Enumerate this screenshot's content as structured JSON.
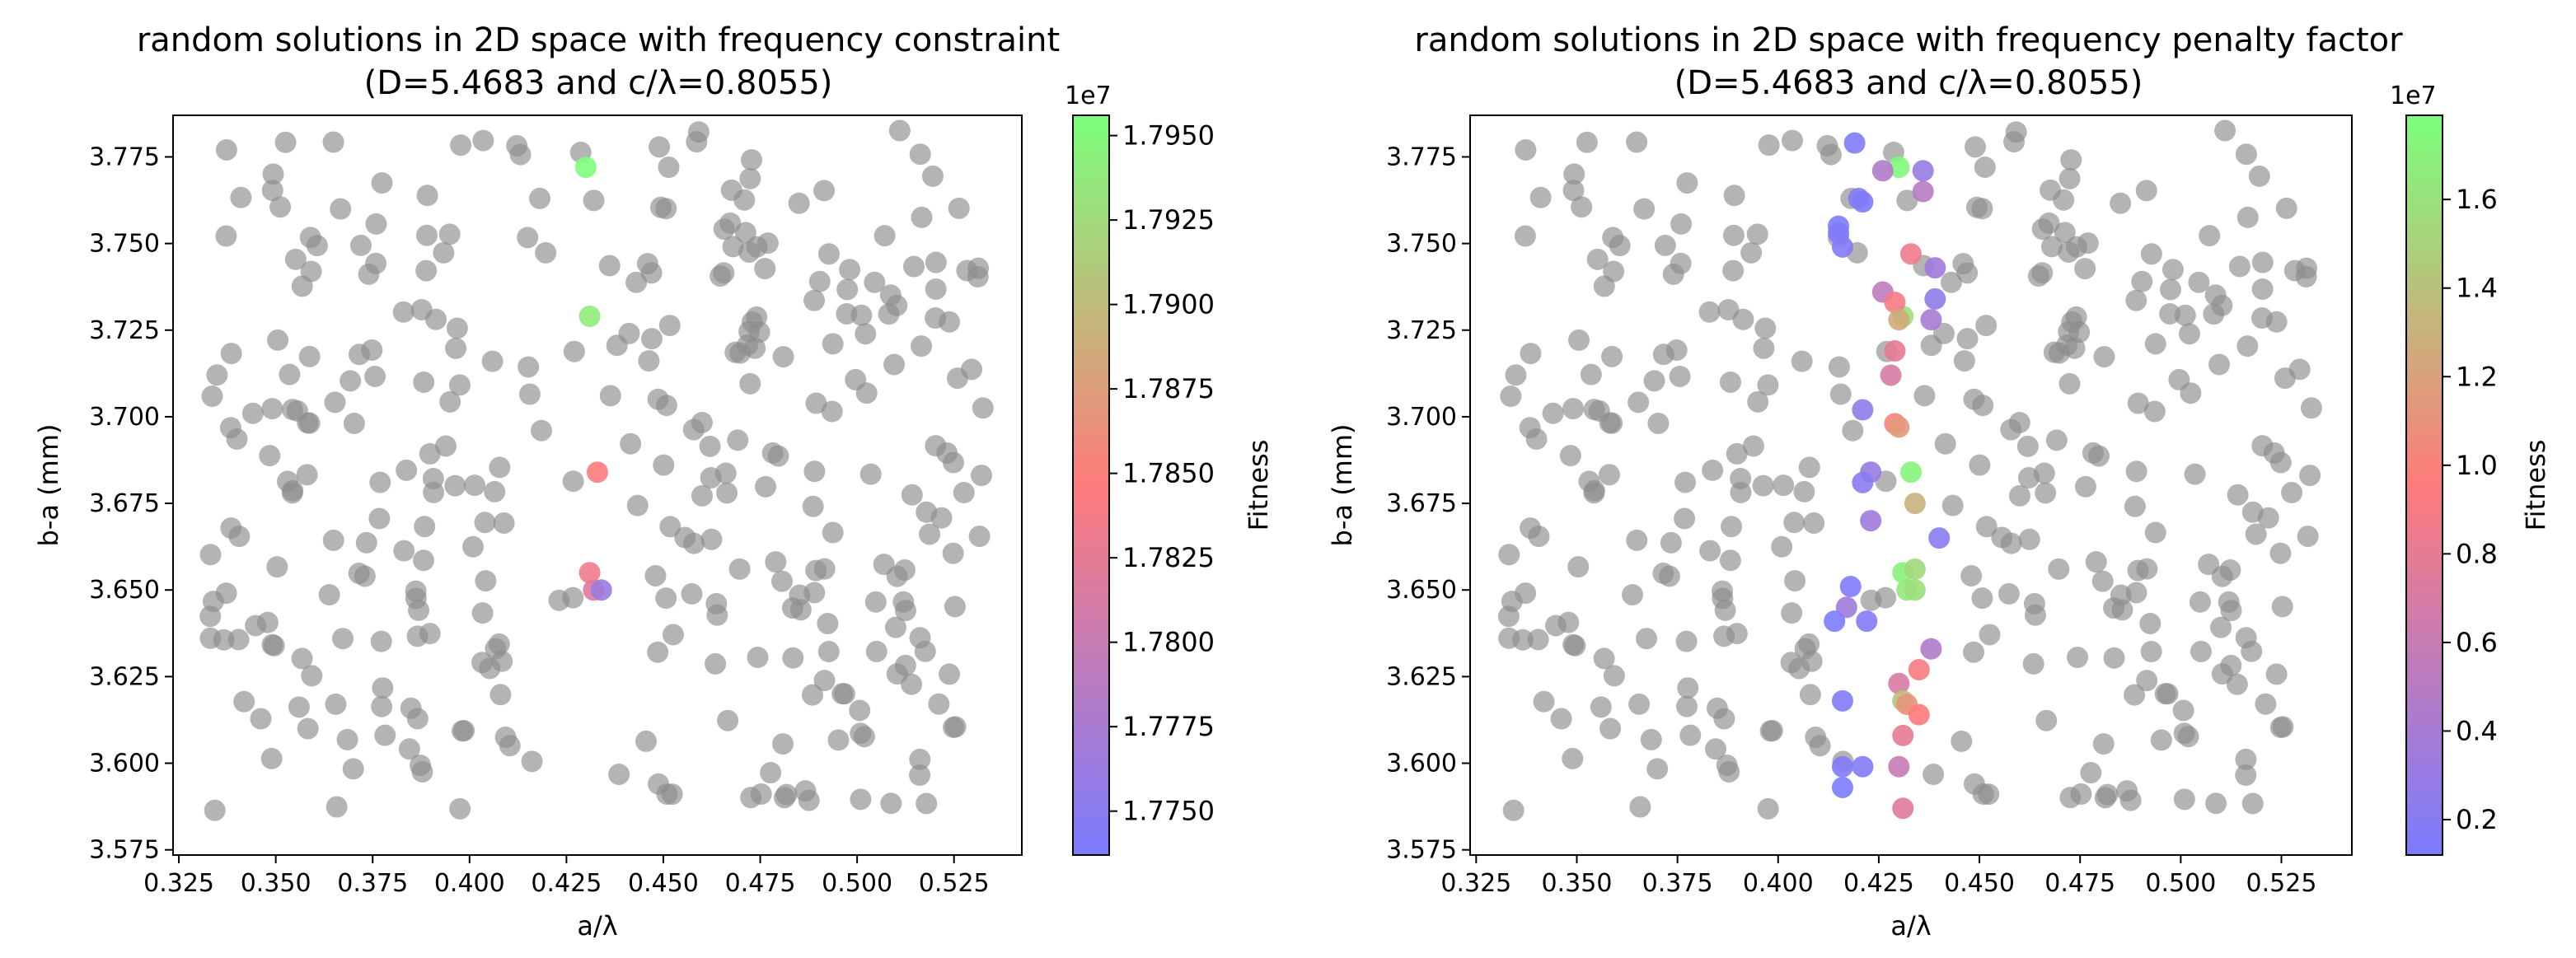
{
  "chart_data": [
    {
      "type": "scatter",
      "title_line1": "random solutions in 2D space with frequency constraint",
      "title_line2": "(D=5.4683 and c/λ=0.8055)",
      "xlabel": "a/λ",
      "ylabel": "b-a (mm)",
      "xlim": [
        0.3235,
        0.5425
      ],
      "ylim": [
        3.5735,
        3.787
      ],
      "xticks": [
        "0.325",
        "0.350",
        "0.375",
        "0.400",
        "0.425",
        "0.450",
        "0.475",
        "0.500",
        "0.525"
      ],
      "yticks": [
        "3.575",
        "3.600",
        "3.625",
        "3.650",
        "3.675",
        "3.700",
        "3.725",
        "3.750",
        "3.775"
      ],
      "colorbar": {
        "label": "Fitness",
        "offset_text": "1e7",
        "range": [
          1.7737,
          1.7956
        ],
        "ticks": [
          "1.7750",
          "1.7775",
          "1.7800",
          "1.7825",
          "1.7850",
          "1.7875",
          "1.7900",
          "1.7925",
          "1.7950"
        ],
        "colors": [
          "#7b7bff",
          "#ff7b7b",
          "#7bff7b"
        ]
      },
      "grey_points_color": "#8c8c8c",
      "colored_points": [
        {
          "x": 0.43,
          "y": 3.772,
          "fitness": 1.7955
        },
        {
          "x": 0.431,
          "y": 3.729,
          "fitness": 1.794
        },
        {
          "x": 0.433,
          "y": 3.684,
          "fitness": 1.7845
        },
        {
          "x": 0.431,
          "y": 3.655,
          "fitness": 1.7835
        },
        {
          "x": 0.432,
          "y": 3.65,
          "fitness": 1.782
        },
        {
          "x": 0.434,
          "y": 3.65,
          "fitness": 1.7765
        }
      ]
    },
    {
      "type": "scatter",
      "title_line1": "random solutions in 2D space with frequency penalty factor",
      "title_line2": "(D=5.4683 and c/λ=0.8055)",
      "xlabel": "a/λ",
      "ylabel": "b-a (mm)",
      "xlim": [
        0.3235,
        0.5425
      ],
      "ylim": [
        3.5735,
        3.787
      ],
      "xticks": [
        "0.325",
        "0.350",
        "0.375",
        "0.400",
        "0.425",
        "0.450",
        "0.475",
        "0.500",
        "0.525"
      ],
      "yticks": [
        "3.575",
        "3.600",
        "3.625",
        "3.650",
        "3.675",
        "3.700",
        "3.725",
        "3.750",
        "3.775"
      ],
      "colorbar": {
        "label": "Fitness",
        "offset_text": "1e7",
        "range": [
          0.12,
          1.79
        ],
        "ticks": [
          "0.2",
          "0.4",
          "0.6",
          "0.8",
          "1.0",
          "1.2",
          "1.4",
          "1.6"
        ],
        "colors": [
          "#7b7bff",
          "#ff7b7b",
          "#7bff7b"
        ]
      },
      "grey_points_color": "#8c8c8c",
      "colored_points": [
        {
          "x": 0.43,
          "y": 3.772,
          "fitness": 1.75
        },
        {
          "x": 0.431,
          "y": 3.729,
          "fitness": 1.6
        },
        {
          "x": 0.433,
          "y": 3.684,
          "fitness": 1.72
        },
        {
          "x": 0.431,
          "y": 3.655,
          "fitness": 1.7
        },
        {
          "x": 0.432,
          "y": 3.65,
          "fitness": 1.65
        },
        {
          "x": 0.434,
          "y": 3.65,
          "fitness": 1.58
        },
        {
          "x": 0.434,
          "y": 3.656,
          "fitness": 1.55
        },
        {
          "x": 0.419,
          "y": 3.779,
          "fitness": 0.15
        },
        {
          "x": 0.426,
          "y": 3.771,
          "fitness": 0.45
        },
        {
          "x": 0.436,
          "y": 3.771,
          "fitness": 0.3
        },
        {
          "x": 0.42,
          "y": 3.763,
          "fitness": 0.2
        },
        {
          "x": 0.421,
          "y": 3.762,
          "fitness": 0.15
        },
        {
          "x": 0.436,
          "y": 3.765,
          "fitness": 0.5
        },
        {
          "x": 0.415,
          "y": 3.755,
          "fitness": 0.12
        },
        {
          "x": 0.415,
          "y": 3.753,
          "fitness": 0.15
        },
        {
          "x": 0.416,
          "y": 3.749,
          "fitness": 0.18
        },
        {
          "x": 0.433,
          "y": 3.747,
          "fitness": 0.85
        },
        {
          "x": 0.439,
          "y": 3.743,
          "fitness": 0.35
        },
        {
          "x": 0.426,
          "y": 3.736,
          "fitness": 0.55
        },
        {
          "x": 0.429,
          "y": 3.733,
          "fitness": 0.9
        },
        {
          "x": 0.439,
          "y": 3.734,
          "fitness": 0.25
        },
        {
          "x": 0.43,
          "y": 3.728,
          "fitness": 1.25
        },
        {
          "x": 0.438,
          "y": 3.728,
          "fitness": 0.4
        },
        {
          "x": 0.429,
          "y": 3.719,
          "fitness": 0.8
        },
        {
          "x": 0.428,
          "y": 3.712,
          "fitness": 0.7
        },
        {
          "x": 0.421,
          "y": 3.702,
          "fitness": 0.25
        },
        {
          "x": 0.429,
          "y": 3.698,
          "fitness": 1.0
        },
        {
          "x": 0.43,
          "y": 3.697,
          "fitness": 1.15
        },
        {
          "x": 0.423,
          "y": 3.684,
          "fitness": 0.3
        },
        {
          "x": 0.421,
          "y": 3.681,
          "fitness": 0.2
        },
        {
          "x": 0.434,
          "y": 3.675,
          "fitness": 1.3
        },
        {
          "x": 0.423,
          "y": 3.67,
          "fitness": 0.35
        },
        {
          "x": 0.44,
          "y": 3.665,
          "fitness": 0.2
        },
        {
          "x": 0.418,
          "y": 3.651,
          "fitness": 0.15
        },
        {
          "x": 0.417,
          "y": 3.645,
          "fitness": 0.35
        },
        {
          "x": 0.414,
          "y": 3.641,
          "fitness": 0.12
        },
        {
          "x": 0.422,
          "y": 3.641,
          "fitness": 0.18
        },
        {
          "x": 0.438,
          "y": 3.633,
          "fitness": 0.45
        },
        {
          "x": 0.435,
          "y": 3.627,
          "fitness": 0.9
        },
        {
          "x": 0.43,
          "y": 3.623,
          "fitness": 0.7
        },
        {
          "x": 0.431,
          "y": 3.618,
          "fitness": 1.4
        },
        {
          "x": 0.432,
          "y": 3.617,
          "fitness": 1.1
        },
        {
          "x": 0.416,
          "y": 3.618,
          "fitness": 0.15
        },
        {
          "x": 0.435,
          "y": 3.614,
          "fitness": 0.95
        },
        {
          "x": 0.431,
          "y": 3.608,
          "fitness": 0.8
        },
        {
          "x": 0.43,
          "y": 3.599,
          "fitness": 0.6
        },
        {
          "x": 0.416,
          "y": 3.599,
          "fitness": 0.15
        },
        {
          "x": 0.421,
          "y": 3.599,
          "fitness": 0.18
        },
        {
          "x": 0.416,
          "y": 3.593,
          "fitness": 0.12
        },
        {
          "x": 0.431,
          "y": 3.587,
          "fitness": 0.75
        }
      ]
    }
  ]
}
